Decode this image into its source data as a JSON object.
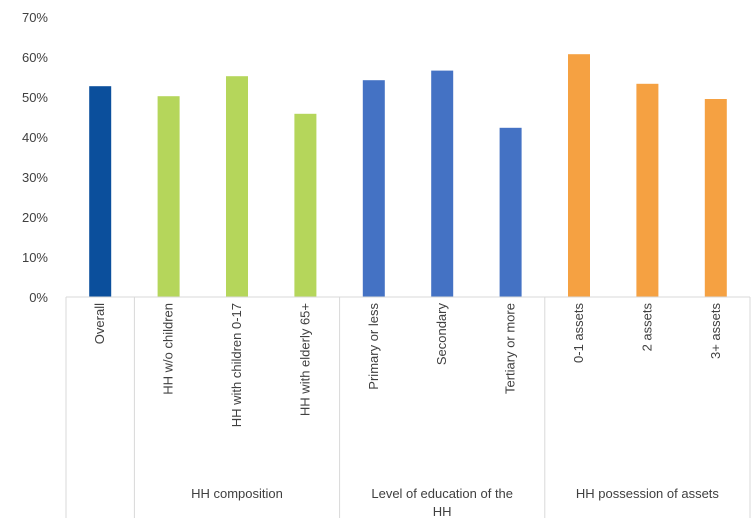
{
  "chart_data": {
    "type": "bar",
    "title": "",
    "xlabel": "",
    "ylabel": "",
    "ylim": [
      0,
      70
    ],
    "yticks": [
      "0%",
      "10%",
      "20%",
      "30%",
      "40%",
      "50%",
      "60%",
      "70%"
    ],
    "grid": false,
    "legend": "none",
    "categories": [
      "Overall",
      "HH w/o children",
      "HH with children 0-17",
      "HH with elderly 65+",
      "Primary or less",
      "Secondary",
      "Tertiary or more",
      "0-1 assets",
      "2 assets",
      "3+ assets"
    ],
    "values": [
      52.7,
      50.2,
      55.2,
      45.8,
      54.2,
      56.6,
      42.3,
      60.7,
      53.3,
      49.5
    ],
    "colors": [
      "#0b4f9c",
      "#b5d65b",
      "#b5d65b",
      "#b5d65b",
      "#4472c4",
      "#4472c4",
      "#4472c4",
      "#f5a142",
      "#f5a142",
      "#f5a142"
    ],
    "groups": [
      {
        "label": "",
        "start": 0,
        "count": 1
      },
      {
        "label": "HH composition",
        "start": 1,
        "count": 3
      },
      {
        "label": "Level of education of the HH",
        "start": 4,
        "count": 3
      },
      {
        "label": "HH possession of assets",
        "start": 7,
        "count": 3
      }
    ]
  }
}
